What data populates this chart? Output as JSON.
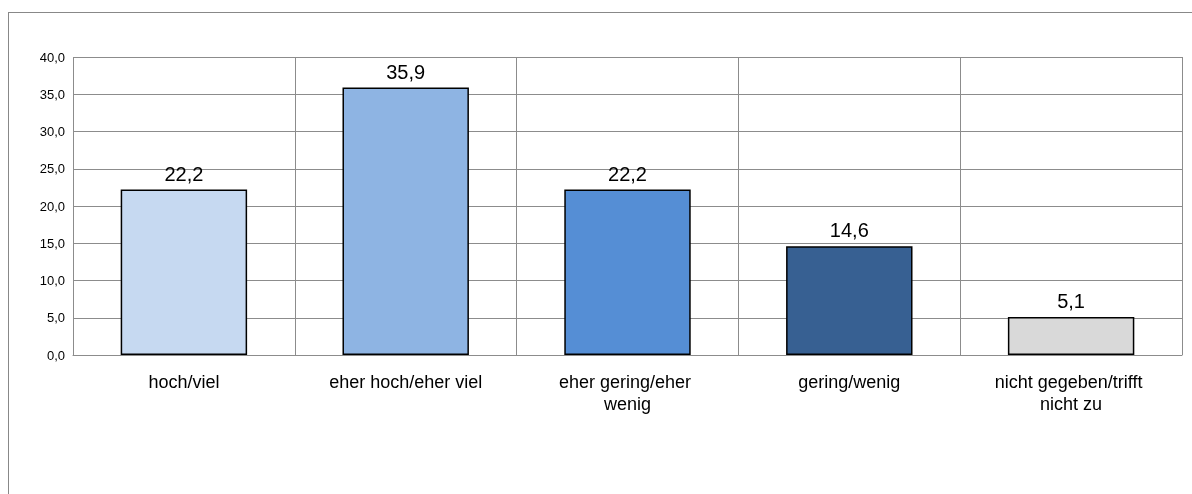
{
  "chart_data": {
    "type": "bar",
    "categories": [
      "hoch/viel",
      "eher hoch/eher viel",
      "eher gering/eher wenig",
      "gering/wenig",
      "nicht gegeben/trifft nicht zu"
    ],
    "values": [
      22.2,
      35.9,
      22.2,
      14.6,
      5.1
    ],
    "colors": [
      "#c6d9f1",
      "#8eb4e3",
      "#558ed5",
      "#376092",
      "#d9d9d9"
    ],
    "value_labels": [
      "22,2",
      "35,9",
      "22,2",
      "14,6",
      "5,1"
    ],
    "ylim": [
      0,
      40
    ],
    "yticks": [
      {
        "value": 0,
        "label": "0,0"
      },
      {
        "value": 5,
        "label": "5,0"
      },
      {
        "value": 10,
        "label": "10,0"
      },
      {
        "value": 15,
        "label": "15,0"
      },
      {
        "value": 20,
        "label": "20,0"
      },
      {
        "value": 25,
        "label": "25,0"
      },
      {
        "value": 30,
        "label": "30,0"
      },
      {
        "value": 35,
        "label": "35,0"
      },
      {
        "value": 40,
        "label": "40,0"
      }
    ],
    "grid": true
  }
}
